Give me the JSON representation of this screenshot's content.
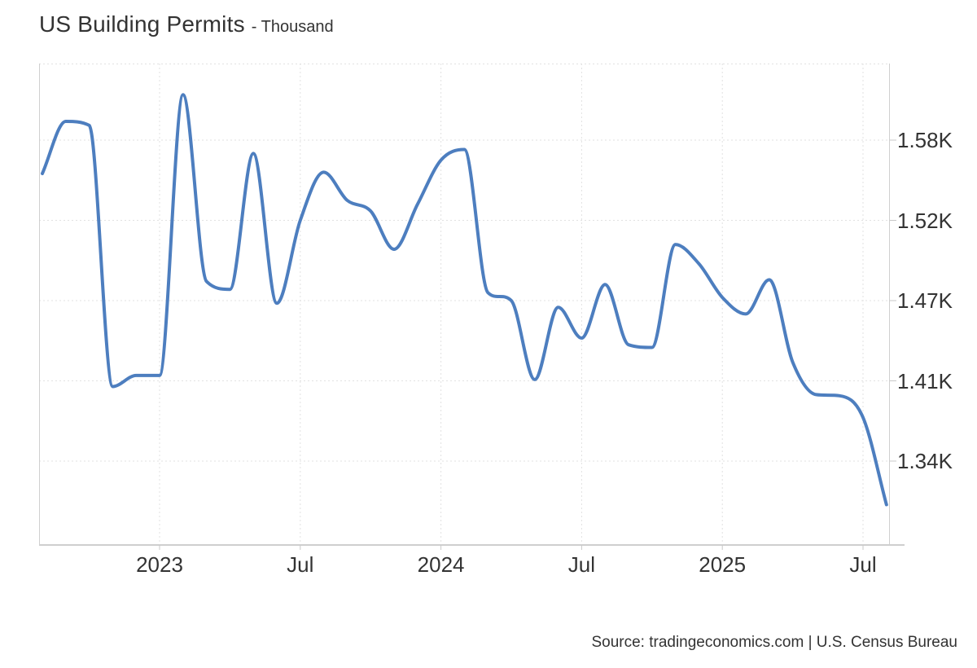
{
  "title": {
    "main": "US Building Permits",
    "subtitle": "- Thousand"
  },
  "source_line": "Source: tradingeconomics.com | U.S. Census Bureau",
  "colors": {
    "line": "#4d7ebf",
    "grid": "#e2e2e2",
    "axis_border": "#cfcfcf",
    "tick": "#c8c8c8",
    "text": "#333333"
  },
  "chart_data": {
    "type": "line",
    "title": "US Building Permits",
    "unit": "Thousand",
    "grid": "dotted",
    "legend": "none",
    "x": [
      "Aug 2022",
      "Sep 2022",
      "Oct 2022",
      "Nov 2022",
      "Dec 2022",
      "Jan 2023",
      "Feb 2023",
      "Mar 2023",
      "Apr 2023",
      "May 2023",
      "Jun 2023",
      "Jul 2023",
      "Aug 2023",
      "Sep 2023",
      "Oct 2023",
      "Nov 2023",
      "Dec 2023",
      "Jan 2024",
      "Feb 2024",
      "Mar 2024",
      "Apr 2024",
      "May 2024",
      "Jun 2024",
      "Jul 2024",
      "Aug 2024",
      "Sep 2024",
      "Oct 2024",
      "Nov 2024",
      "Dec 2024",
      "Jan 2025",
      "Feb 2025",
      "Mar 2025",
      "Apr 2025",
      "May 2025",
      "Jun 2025",
      "Jul 2025",
      "Aug 2025"
    ],
    "values": [
      1.555,
      1.594,
      1.591,
      1.405,
      1.414,
      1.414,
      1.614,
      1.482,
      1.477,
      1.57,
      1.468,
      1.52,
      1.556,
      1.535,
      1.527,
      1.502,
      1.532,
      1.565,
      1.573,
      1.475,
      1.47,
      1.411,
      1.465,
      1.442,
      1.48,
      1.437,
      1.435,
      1.505,
      1.493,
      1.472,
      1.46,
      1.483,
      1.424,
      1.398,
      1.397,
      1.378,
      1.302
    ],
    "y_axis": {
      "side": "right",
      "ticks": [
        {
          "label": "1.58K",
          "value": 1.58
        },
        {
          "label": "1.52K",
          "value": 1.52
        },
        {
          "label": "1.47K",
          "value": 1.47
        },
        {
          "label": "1.41K",
          "value": 1.41
        },
        {
          "label": "1.34K",
          "value": 1.34
        }
      ]
    },
    "x_axis": {
      "ticks": [
        {
          "label": "2023",
          "index": 5
        },
        {
          "label": "Jul",
          "index": 11
        },
        {
          "label": "2024",
          "index": 17
        },
        {
          "label": "Jul",
          "index": 23
        },
        {
          "label": "2025",
          "index": 29
        },
        {
          "label": "Jul",
          "index": 35
        }
      ]
    }
  }
}
